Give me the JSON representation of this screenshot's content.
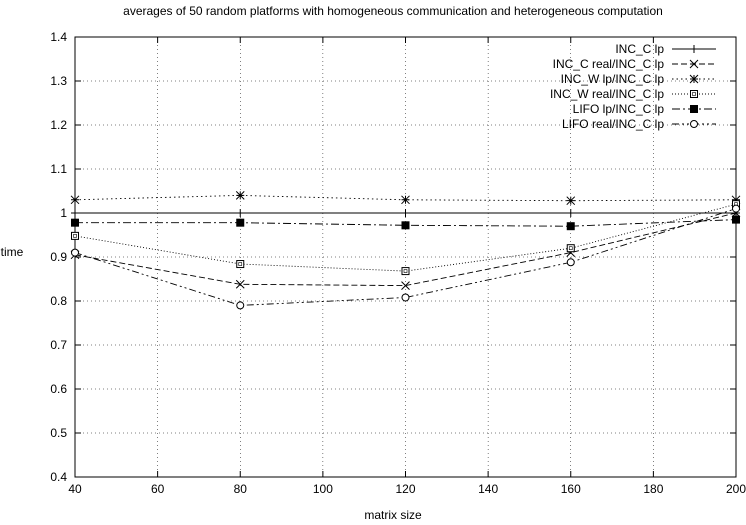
{
  "chart_data": {
    "type": "line",
    "title": "averages of 50 random platforms with homogeneous communication and heterogeneous computation",
    "xlabel": "matrix size",
    "ylabel": "time",
    "xlim": [
      40,
      200
    ],
    "ylim": [
      0.4,
      1.4
    ],
    "xticks": [
      40,
      60,
      80,
      100,
      120,
      140,
      160,
      180,
      200
    ],
    "yticks": [
      0.4,
      0.5,
      0.6,
      0.7,
      0.8,
      0.9,
      1,
      1.1,
      1.2,
      1.3,
      1.4
    ],
    "grid": true,
    "legend_position": "top-right",
    "x": [
      40,
      80,
      120,
      160,
      200
    ],
    "series": [
      {
        "name": "INC_C lp",
        "values": [
          1.0,
          1.0,
          1.0,
          1.0,
          1.0
        ],
        "marker": "plus",
        "dash": "solid"
      },
      {
        "name": "INC_C real/INC_C lp",
        "values": [
          0.905,
          0.838,
          0.835,
          0.91,
          1.0
        ],
        "marker": "cross",
        "dash": "dashed"
      },
      {
        "name": "INC_W lp/INC_C lp",
        "values": [
          1.03,
          1.04,
          1.03,
          1.028,
          1.03
        ],
        "marker": "star",
        "dash": "dotted"
      },
      {
        "name": "INC_W real/INC_C lp",
        "values": [
          0.948,
          0.884,
          0.868,
          0.92,
          1.02
        ],
        "marker": "open-square",
        "dash": "sparse-dotted"
      },
      {
        "name": "LIFO lp/INC_C lp",
        "values": [
          0.978,
          0.978,
          0.972,
          0.97,
          0.985
        ],
        "marker": "filled-square",
        "dash": "dashdot"
      },
      {
        "name": "LIFO real/INC_C lp",
        "values": [
          0.91,
          0.79,
          0.808,
          0.888,
          1.01
        ],
        "marker": "open-circle",
        "dash": "dashdotdot"
      }
    ]
  }
}
